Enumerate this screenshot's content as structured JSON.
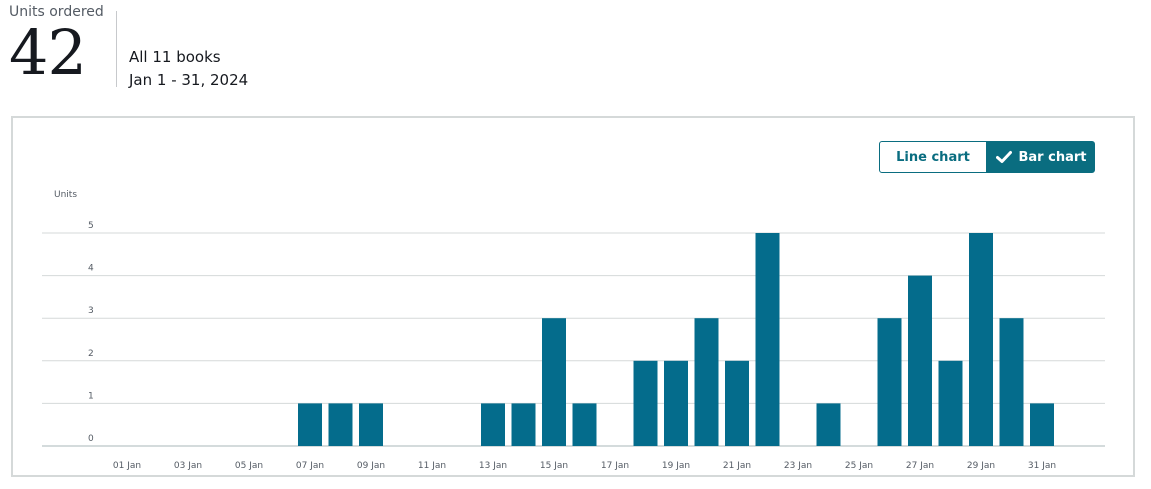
{
  "summary": {
    "metric_label": "Units ordered",
    "metric_value": "42",
    "scope_books": "All 11 books",
    "scope_dates": "Jan 1 - 31, 2024"
  },
  "toggle": {
    "line_label": "Line chart",
    "bar_label": "Bar chart",
    "selected": "bar"
  },
  "colors": {
    "bar": "#046c8c",
    "accent": "#0a6d80",
    "grid": "#d5d9d9"
  },
  "chart_data": {
    "type": "bar",
    "ylabel": "Units",
    "xlabel": "",
    "title": "",
    "ylim": [
      0,
      5
    ],
    "yticks": [
      "0",
      "1",
      "2",
      "3",
      "4",
      "5"
    ],
    "categories": [
      "01 Jan",
      "02 Jan",
      "03 Jan",
      "04 Jan",
      "05 Jan",
      "06 Jan",
      "07 Jan",
      "08 Jan",
      "09 Jan",
      "10 Jan",
      "11 Jan",
      "12 Jan",
      "13 Jan",
      "14 Jan",
      "15 Jan",
      "16 Jan",
      "17 Jan",
      "18 Jan",
      "19 Jan",
      "20 Jan",
      "21 Jan",
      "22 Jan",
      "23 Jan",
      "24 Jan",
      "25 Jan",
      "26 Jan",
      "27 Jan",
      "28 Jan",
      "29 Jan",
      "30 Jan",
      "31 Jan"
    ],
    "x_tick_labels": [
      "01 Jan",
      "03 Jan",
      "05 Jan",
      "07 Jan",
      "09 Jan",
      "11 Jan",
      "13 Jan",
      "15 Jan",
      "17 Jan",
      "19 Jan",
      "21 Jan",
      "23 Jan",
      "25 Jan",
      "27 Jan",
      "29 Jan",
      "31 Jan"
    ],
    "values": [
      0,
      0,
      0,
      0,
      0,
      0,
      1,
      1,
      1,
      0,
      0,
      0,
      1,
      1,
      3,
      1,
      0,
      2,
      2,
      3,
      2,
      5,
      0,
      1,
      0,
      3,
      4,
      2,
      5,
      3,
      1
    ],
    "grid": true
  }
}
